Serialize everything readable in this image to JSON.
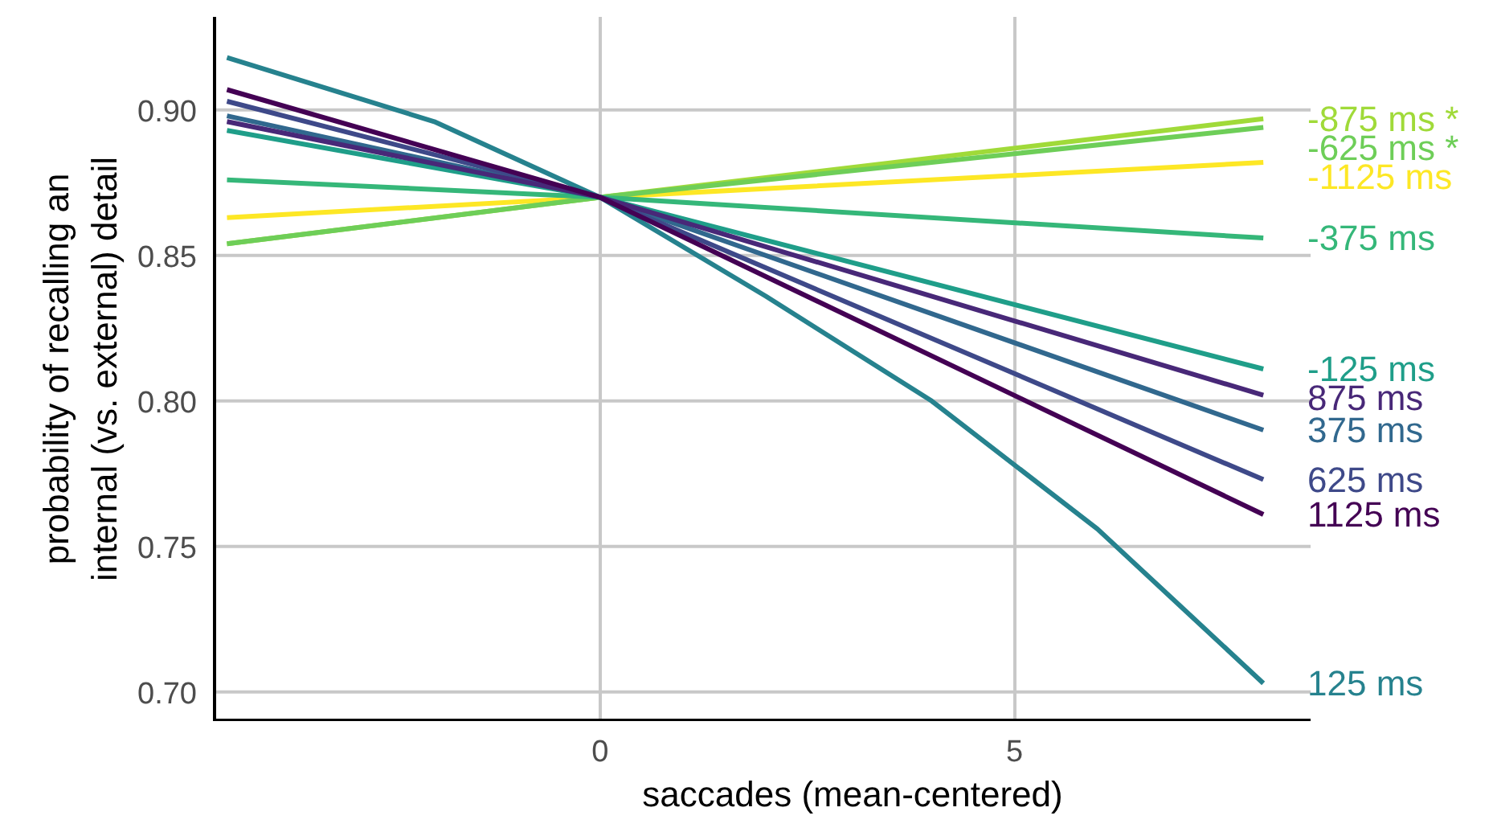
{
  "chart_data": {
    "type": "line",
    "xlabel": "saccades (mean-centered)",
    "ylabel": "probability of recalling an\ninternal (vs. external) detail",
    "xlim": [
      -4.65,
      8.57
    ],
    "ylim": [
      0.69,
      0.932
    ],
    "xticks": [
      0,
      5
    ],
    "yticks": [
      {
        "value": 0.7,
        "label": "0.70"
      },
      {
        "value": 0.75,
        "label": "0.75"
      },
      {
        "value": 0.8,
        "label": "0.80"
      },
      {
        "value": 0.85,
        "label": "0.85"
      },
      {
        "value": 0.9,
        "label": "0.90"
      }
    ],
    "grid": true,
    "series": [
      {
        "name": "-1125 ms",
        "color": "#fde725",
        "x": [
          -4.5,
          0,
          8
        ],
        "values": [
          0.863,
          0.87,
          0.882
        ]
      },
      {
        "name": "-875 ms *",
        "color": "#a0da39",
        "x": [
          -4.5,
          0,
          8
        ],
        "values": [
          0.854,
          0.87,
          0.897
        ]
      },
      {
        "name": "-625 ms *",
        "color": "#6ece58",
        "x": [
          -4.5,
          0,
          8
        ],
        "values": [
          0.854,
          0.87,
          0.894
        ]
      },
      {
        "name": "-375 ms",
        "color": "#35b779",
        "x": [
          -4.5,
          0,
          8
        ],
        "values": [
          0.876,
          0.87,
          0.856
        ]
      },
      {
        "name": "-125 ms",
        "color": "#1f9e89",
        "x": [
          -4.5,
          0,
          8
        ],
        "values": [
          0.893,
          0.87,
          0.811
        ]
      },
      {
        "name": "125 ms",
        "color": "#26828e",
        "x": [
          -4.5,
          -2,
          0,
          2,
          4,
          6,
          8
        ],
        "values": [
          0.918,
          0.896,
          0.87,
          0.836,
          0.8,
          0.756,
          0.703
        ]
      },
      {
        "name": "375 ms",
        "color": "#31688e",
        "x": [
          -4.5,
          0,
          8
        ],
        "values": [
          0.898,
          0.87,
          0.79
        ]
      },
      {
        "name": "625 ms",
        "color": "#3e4989",
        "x": [
          -4.5,
          0,
          8
        ],
        "values": [
          0.903,
          0.87,
          0.773
        ]
      },
      {
        "name": "875 ms",
        "color": "#482878",
        "x": [
          -4.5,
          0,
          8
        ],
        "values": [
          0.896,
          0.87,
          0.802
        ]
      },
      {
        "name": "1125 ms",
        "color": "#440154",
        "x": [
          -4.5,
          0,
          8
        ],
        "values": [
          0.907,
          0.87,
          0.761
        ]
      }
    ]
  }
}
